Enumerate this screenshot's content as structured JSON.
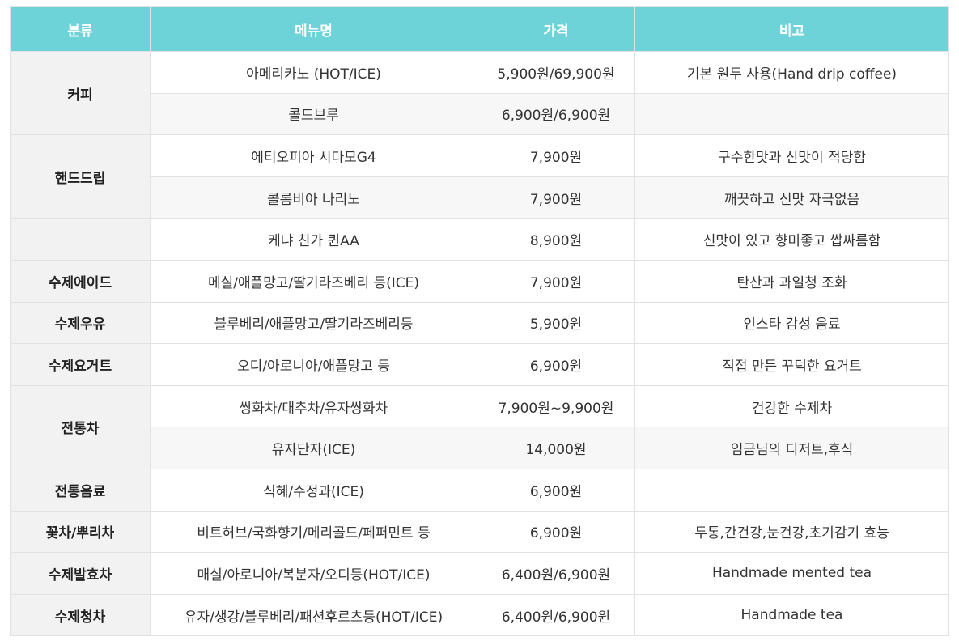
{
  "headers": [
    "분류",
    "메뉴명",
    "가격",
    "비고"
  ],
  "rows": [
    {
      "category": "커피",
      "span": 2,
      "menu": "아메리카노 (HOT/ICE)",
      "price": "5,900원/69,900원",
      "note": "기본 원두 사용(Hand drip coffee)"
    },
    {
      "menu": "콜드브루",
      "price": "6,900원/6,900원",
      "note": ""
    },
    {
      "category": "핸드드립",
      "span": 2,
      "menu": "에티오피아 시다모G4",
      "price": "7,900원",
      "note": "구수한맛과 신맛이 적당함"
    },
    {
      "menu": "콜롬비아 나리노",
      "price": "7,900원",
      "note": "깨끗하고 신맛 자극없음"
    },
    {
      "category": "",
      "span": 1,
      "menu": "케냐 친가 퀸AA",
      "price": "8,900원",
      "note": "신맛이 있고 향미좋고 쌉싸름함"
    },
    {
      "category": "수제에이드",
      "span": 1,
      "menu": "메실/애플망고/딸기라즈베리 등(ICE)",
      "price": "7,900원",
      "note": "탄산과 과일청 조화"
    },
    {
      "category": "수제우유",
      "span": 1,
      "menu": "블루베리/애플망고/딸기라즈베리등",
      "price": "5,900원",
      "note": "인스타 감성 음료"
    },
    {
      "category": "수제요거트",
      "span": 1,
      "menu": "오디/아로니아/애플망고 등",
      "price": "6,900원",
      "note": "직접 만든 꾸덕한 요거트"
    },
    {
      "category": "전통차",
      "span": 2,
      "menu": "쌍화차/대추차/유자쌍화차",
      "price": "7,900원~9,900원",
      "note": "건강한 수제차"
    },
    {
      "menu": "유자단자(ICE)",
      "price": "14,000원",
      "note": "임금님의 디저트,후식"
    },
    {
      "category": "전통음료",
      "span": 1,
      "menu": "식혜/수정과(ICE)",
      "price": "6,900원",
      "note": ""
    },
    {
      "category": "꽃차/뿌리차",
      "span": 1,
      "menu": "비트허브/국화향기/메리골드/페퍼민트 등",
      "price": "6,900원",
      "note": "두통,간건강,눈건강,초기감기 효능"
    },
    {
      "category": "수제발효차",
      "span": 1,
      "menu": "매실/아로니아/복분자/오디등(HOT/ICE)",
      "price": "6,400원/6,900원",
      "note": "Handmade mented tea"
    },
    {
      "category": "수제청차",
      "span": 1,
      "menu": "유자/생강/블루베리/패션후르츠등(HOT/ICE)",
      "price": "6,400원/6,900원",
      "note": "Handmade tea"
    }
  ]
}
